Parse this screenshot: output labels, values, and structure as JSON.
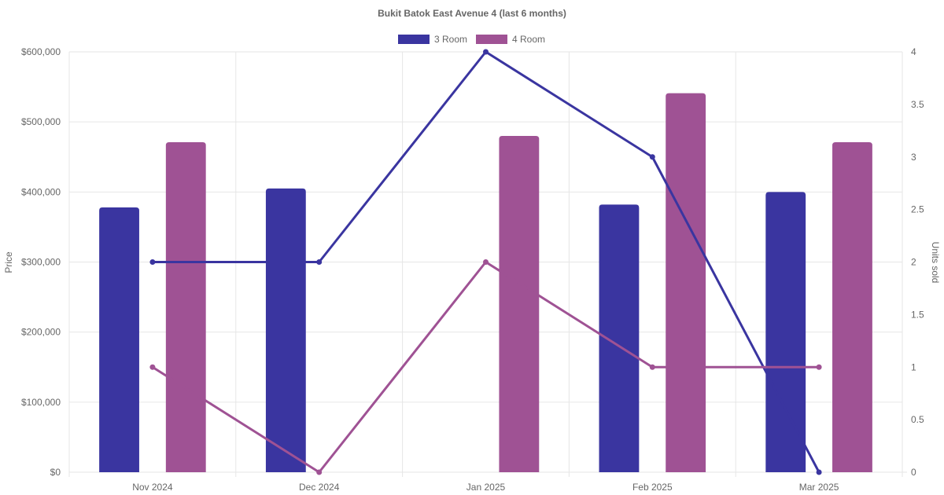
{
  "chart_data": {
    "type": "bar",
    "title": "Bukit Batok East Avenue 4 (last 6 months)",
    "categories": [
      "Nov 2024",
      "Dec 2024",
      "Jan 2025",
      "Feb 2025",
      "Mar 2025"
    ],
    "y_left": {
      "label": "Price",
      "min": 0,
      "max": 600000,
      "ticks": [
        0,
        100000,
        200000,
        300000,
        400000,
        500000,
        600000
      ],
      "tick_labels": [
        "$0",
        "$100,000",
        "$200,000",
        "$300,000",
        "$400,000",
        "$500,000",
        "$600,000"
      ]
    },
    "y_right": {
      "label": "Units sold",
      "min": 0,
      "max": 4,
      "ticks": [
        0,
        0.5,
        1,
        1.5,
        2,
        2.5,
        3,
        3.5,
        4
      ],
      "tick_labels": [
        "0",
        "0.5",
        "1",
        "1.5",
        "2",
        "2.5",
        "3",
        "3.5",
        "4"
      ]
    },
    "legend": {
      "position": "top-center"
    },
    "grid": true,
    "series": [
      {
        "name": "3 Room",
        "color": "#3a35a0",
        "bar_values": [
          378000,
          405000,
          null,
          382000,
          400000
        ],
        "line_values": [
          2,
          2,
          4,
          3,
          0
        ]
      },
      {
        "name": "4 Room",
        "color": "#9f5294",
        "bar_values": [
          471000,
          null,
          480000,
          541000,
          471000
        ],
        "line_values": [
          1,
          0,
          2,
          1,
          1
        ]
      }
    ]
  }
}
